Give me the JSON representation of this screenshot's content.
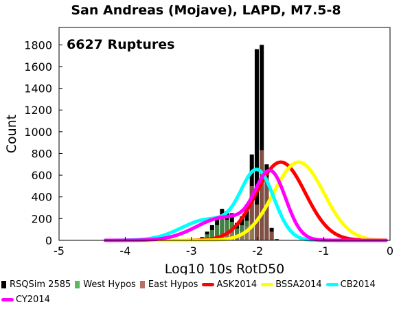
{
  "chart_data": {
    "type": "bar",
    "title": "San Andreas (Mojave), LAPD, M7.5-8",
    "xlabel": "Log10 10s RotD50",
    "ylabel": "Count",
    "annotation": "6627 Ruptures",
    "xlim": [
      -5,
      0
    ],
    "ylim": [
      0,
      1960
    ],
    "xticks": [
      -5,
      -4,
      -3,
      -2,
      -1,
      0
    ],
    "xtick_labels": [
      "-5",
      "-4",
      "-3",
      "-2",
      "-1",
      "0"
    ],
    "yticks": [
      0,
      200,
      400,
      600,
      800,
      1000,
      1200,
      1400,
      1600,
      1800
    ],
    "ytick_labels": [
      "0",
      "200",
      "400",
      "600",
      "800",
      "1000",
      "1200",
      "1400",
      "1600",
      "1800"
    ],
    "grid": false,
    "bin_width": 0.075,
    "bins_x": [
      -2.988,
      -2.913,
      -2.838,
      -2.763,
      -2.688,
      -2.613,
      -2.538,
      -2.463,
      -2.388,
      -2.313,
      -2.238,
      -2.163,
      -2.088,
      -2.013,
      -1.938,
      -1.863,
      -1.788,
      -1.713,
      -1.638
    ],
    "series": [
      {
        "name": "RSQSim 2585",
        "color": "#000000",
        "values": [
          5,
          10,
          30,
          80,
          140,
          200,
          290,
          270,
          250,
          160,
          220,
          330,
          790,
          1760,
          1800,
          700,
          115,
          12,
          0
        ]
      },
      {
        "name": "West Hypos",
        "color": "#5bb85b",
        "values": [
          3,
          6,
          20,
          55,
          95,
          140,
          200,
          190,
          170,
          110,
          140,
          180,
          150,
          0,
          0,
          0,
          0,
          0,
          0
        ]
      },
      {
        "name": "East Hypos",
        "color": "#b87060",
        "values": [
          0,
          0,
          5,
          10,
          20,
          30,
          40,
          60,
          70,
          60,
          80,
          130,
          500,
          330,
          830,
          580,
          80,
          8,
          0
        ]
      }
    ],
    "curves": [
      {
        "name": "ASK2014",
        "color": "#ff0000",
        "mean": -1.65,
        "sigma": 0.37,
        "peak": 720
      },
      {
        "name": "BSSA2014",
        "color": "#ffff00",
        "mean": -1.38,
        "sigma": 0.38,
        "peak": 720
      },
      {
        "name": "CB2014",
        "color": "#00ffff",
        "parts": [
          {
            "mean": -2.0,
            "sigma": 0.25,
            "peak": 620
          },
          {
            "mean": -2.75,
            "sigma": 0.4,
            "peak": 190
          }
        ]
      },
      {
        "name": "CY2014",
        "color": "#ff00ff",
        "parts": [
          {
            "mean": -1.8,
            "sigma": 0.23,
            "peak": 590
          },
          {
            "mean": -2.5,
            "sigma": 0.42,
            "peak": 210
          }
        ]
      }
    ]
  },
  "legend": {
    "items": [
      {
        "label": "RSQSim 2585",
        "kind": "box",
        "color": "#000000"
      },
      {
        "label": "West Hypos",
        "kind": "box",
        "color": "#5bb85b"
      },
      {
        "label": "East Hypos",
        "kind": "box",
        "color": "#b87060"
      },
      {
        "label": "ASK2014",
        "kind": "line",
        "color": "#ff0000"
      },
      {
        "label": "BSSA2014",
        "kind": "line",
        "color": "#ffff00"
      },
      {
        "label": "CB2014",
        "kind": "line",
        "color": "#00ffff"
      },
      {
        "label": "CY2014",
        "kind": "line",
        "color": "#ff00ff"
      }
    ]
  }
}
